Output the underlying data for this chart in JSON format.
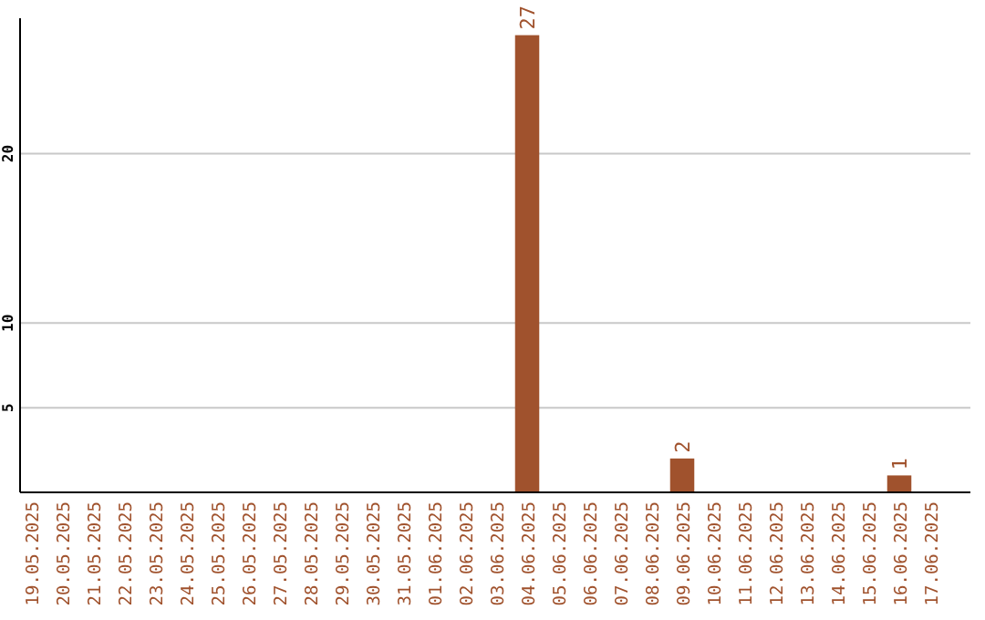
{
  "chart_data": {
    "type": "bar",
    "categories": [
      "19.05.2025",
      "20.05.2025",
      "21.05.2025",
      "22.05.2025",
      "23.05.2025",
      "24.05.2025",
      "25.05.2025",
      "26.05.2025",
      "27.05.2025",
      "28.05.2025",
      "29.05.2025",
      "30.05.2025",
      "31.05.2025",
      "01.06.2025",
      "02.06.2025",
      "03.06.2025",
      "04.06.2025",
      "05.06.2025",
      "06.06.2025",
      "07.06.2025",
      "08.06.2025",
      "09.06.2025",
      "10.06.2025",
      "11.06.2025",
      "12.06.2025",
      "13.06.2025",
      "14.06.2025",
      "15.06.2025",
      "16.06.2025",
      "17.06.2025"
    ],
    "values": [
      0,
      0,
      0,
      0,
      0,
      0,
      0,
      0,
      0,
      0,
      0,
      0,
      0,
      0,
      0,
      0,
      27,
      0,
      0,
      0,
      0,
      2,
      0,
      0,
      0,
      0,
      0,
      0,
      1,
      0
    ],
    "value_labels": [
      null,
      null,
      null,
      null,
      null,
      null,
      null,
      null,
      null,
      null,
      null,
      null,
      null,
      null,
      null,
      null,
      "27",
      null,
      null,
      null,
      null,
      "2",
      null,
      null,
      null,
      null,
      null,
      null,
      "1",
      null
    ],
    "color": "#a0522d",
    "ylim": [
      0,
      28
    ],
    "yticks": [
      5,
      10,
      20
    ],
    "grid": "y"
  }
}
